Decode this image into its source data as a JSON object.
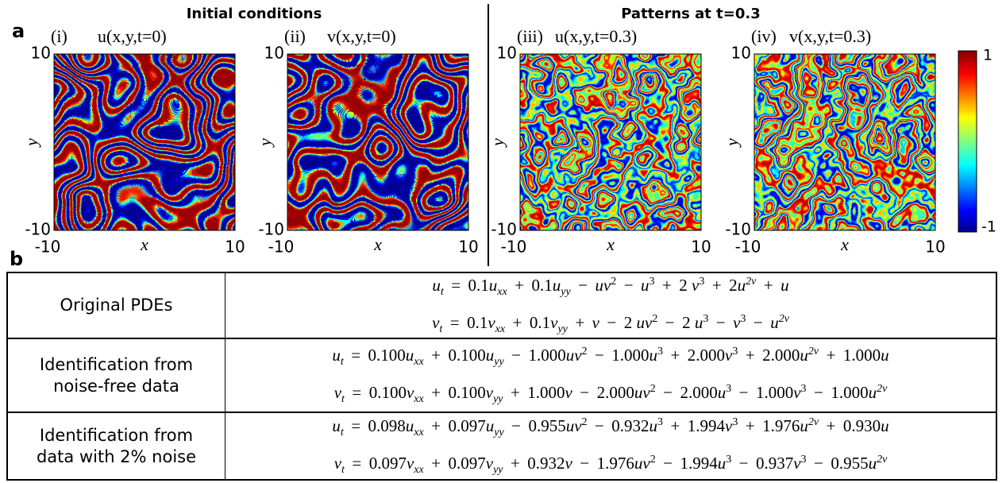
{
  "panel_a": {
    "label": "a",
    "headers": [
      "Initial conditions",
      "Patterns at t=0.3"
    ],
    "plots": [
      {
        "tag": "(i)",
        "title": "u(x,y,t=0)"
      },
      {
        "tag": "(ii)",
        "title": "v(x,y,t=0)"
      },
      {
        "tag": "(iii)",
        "title": "u(x,y,t=0.3)"
      },
      {
        "tag": "(iv)",
        "title": "v(x,y,t=0.3)"
      }
    ],
    "xlabel": "x",
    "ylabel": "y",
    "ticks": [
      "-10",
      "10"
    ],
    "colorbar_ticks": [
      "1",
      "-1"
    ]
  },
  "panel_b": {
    "label": "b",
    "rows": [
      {
        "label": [
          "Original PDEs"
        ],
        "equations": [
          "u_t = 0.1u_xx + 0.1u_yy − uv^2 − u^3 + 2 v^3 + 2u^2v + u",
          "v_t = 0.1v_xx + 0.1v_yy + v − 2 uv^2 − 2 u^3 − v^3 − u^2v"
        ]
      },
      {
        "label": [
          "Identification from",
          "noise-free data"
        ],
        "equations": [
          "u_t = 0.100u_xx + 0.100u_yy − 1.000uv^2 − 1.000u^3 + 2.000v^3 + 2.000u^2v + 1.000u",
          "v_t = 0.100v_xx + 0.100v_yy + 1.000v − 2.000uv^2 − 2.000u^3 − 1.000v^3 − 1.000u^2v"
        ]
      },
      {
        "label": [
          "Identification from",
          "data with 2% noise"
        ],
        "equations": [
          "u_t = 0.098u_xx + 0.097u_yy − 0.955uv^2 − 0.932u^3 + 1.994v^3 + 1.976u^2v + 0.930u",
          "v_t = 0.097v_xx + 0.097v_yy + 0.932v − 1.976uv^2 − 1.994u^3 − 0.937v^3 − 0.955u^2v"
        ]
      }
    ]
  }
}
